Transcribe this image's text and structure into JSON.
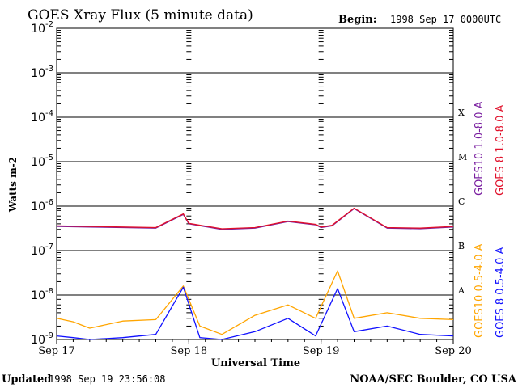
{
  "header": {
    "title": "GOES Xray Flux (5 minute data)",
    "begin_label": "Begin:",
    "begin_value": "1998 Sep 17 0000UTC"
  },
  "footer": {
    "updated_label": "Updated",
    "updated_value": "1998 Sep 19 23:56:08",
    "credit": "NOAA/SEC Boulder, CO USA"
  },
  "colors": {
    "goes10_long": "#7a1fa0",
    "goes8_long": "#e0102a",
    "goes10_short": "#ffa500",
    "goes8_short": "#1010ff"
  },
  "chart_data": {
    "type": "line",
    "title": "GOES Xray Flux (5 minute data)",
    "xlabel": "Universal Time",
    "ylabel": "Watts m-2",
    "y_scale": "log",
    "ylim": [
      1e-09,
      0.01
    ],
    "xlim": [
      "1998-09-17 00:00",
      "1998-09-20 00:00"
    ],
    "x_ticks": [
      "Sep 17",
      "Sep 18",
      "Sep 19",
      "Sep 20"
    ],
    "y_ticks": [
      "10",
      "10",
      "10",
      "10",
      "10",
      "10",
      "10",
      "10"
    ],
    "y_tick_exponents": [
      "-9",
      "-8",
      "-7",
      "-6",
      "-5",
      "-4",
      "-3",
      "-2"
    ],
    "flare_classes": [
      "A",
      "B",
      "C",
      "M",
      "X"
    ],
    "grid": "horizontal",
    "legend": "right",
    "series": [
      {
        "name": "GOES10 1.0-8.0 A",
        "x": [
          "09-17 00:00",
          "09-17 06:00",
          "09-17 12:00",
          "09-17 18:00",
          "09-17 23:00",
          "09-18 00:00",
          "09-18 06:00",
          "09-18 12:00",
          "09-18 18:00",
          "09-18 23:00",
          "09-19 00:00",
          "09-19 02:00",
          "09-19 06:00",
          "09-19 12:00",
          "09-19 18:00",
          "09-20 00:00"
        ],
        "values": [
          3.5e-07,
          3.4e-07,
          3.3e-07,
          3.2e-07,
          6.5e-07,
          4e-07,
          3e-07,
          3.2e-07,
          4.5e-07,
          3.8e-07,
          3.3e-07,
          3.6e-07,
          8.8e-07,
          3.2e-07,
          3.1e-07,
          3.4e-07
        ]
      },
      {
        "name": "GOES 8 1.0-8.0 A",
        "x": [
          "09-17 00:00",
          "09-17 06:00",
          "09-17 12:00",
          "09-17 18:00",
          "09-17 23:00",
          "09-18 00:00",
          "09-18 06:00",
          "09-18 12:00",
          "09-18 18:00",
          "09-18 23:00",
          "09-19 00:00",
          "09-19 02:00",
          "09-19 06:00",
          "09-19 12:00",
          "09-19 18:00",
          "09-20 00:00"
        ],
        "values": [
          3.6e-07,
          3.5e-07,
          3.4e-07,
          3.3e-07,
          6.7e-07,
          4.1e-07,
          3.1e-07,
          3.3e-07,
          4.6e-07,
          3.9e-07,
          3.4e-07,
          3.7e-07,
          9e-07,
          3.3e-07,
          3.2e-07,
          3.5e-07
        ]
      },
      {
        "name": "GOES10 0.5-4.0 A",
        "x": [
          "09-17 00:00",
          "09-17 03:00",
          "09-17 06:00",
          "09-17 12:00",
          "09-17 18:00",
          "09-17 23:00",
          "09-18 02:00",
          "09-18 06:00",
          "09-18 12:00",
          "09-18 18:00",
          "09-18 23:00",
          "09-19 03:00",
          "09-19 06:00",
          "09-19 12:00",
          "09-19 18:00",
          "09-20 00:00"
        ],
        "values": [
          3e-09,
          2.5e-09,
          1.8e-09,
          2.6e-09,
          2.8e-09,
          1.6e-08,
          2e-09,
          1.3e-09,
          3.5e-09,
          6e-09,
          3e-09,
          3.5e-08,
          3e-09,
          4e-09,
          3e-09,
          2.8e-09
        ]
      },
      {
        "name": "GOES 8 0.5-4.0 A",
        "x": [
          "09-17 00:00",
          "09-17 03:00",
          "09-17 06:00",
          "09-17 12:00",
          "09-17 18:00",
          "09-17 23:00",
          "09-18 02:00",
          "09-18 06:00",
          "09-18 12:00",
          "09-18 18:00",
          "09-18 23:00",
          "09-19 03:00",
          "09-19 06:00",
          "09-19 12:00",
          "09-19 18:00",
          "09-20 00:00"
        ],
        "values": [
          1.2e-09,
          1.1e-09,
          1e-09,
          1.1e-09,
          1.3e-09,
          1.5e-08,
          1.1e-09,
          1e-09,
          1.5e-09,
          3e-09,
          1.2e-09,
          1.4e-08,
          1.5e-09,
          2e-09,
          1.3e-09,
          1.2e-09
        ]
      }
    ]
  }
}
